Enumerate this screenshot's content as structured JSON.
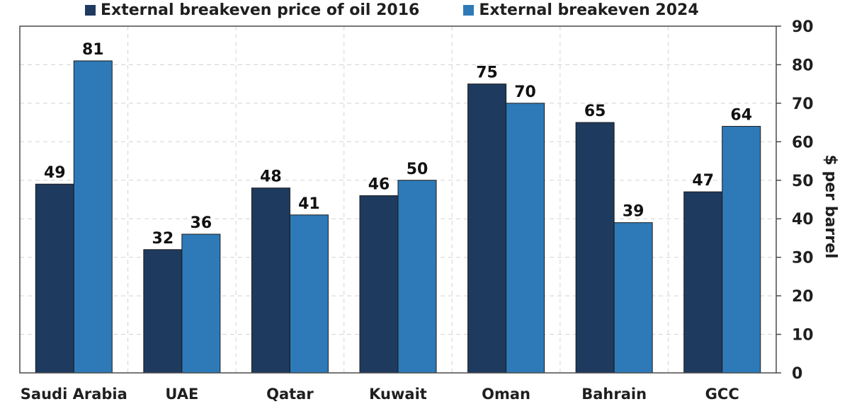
{
  "chart_data": {
    "type": "bar",
    "categories": [
      "Saudi Arabia",
      "UAE",
      "Qatar",
      "Kuwait",
      "Oman",
      "Bahrain",
      "GCC"
    ],
    "series": [
      {
        "name": "External breakeven price of oil 2016",
        "color": "#1f3a5f",
        "values": [
          49,
          32,
          48,
          46,
          75,
          65,
          47
        ],
        "labels": [
          "49",
          "32",
          "48",
          "46",
          "75",
          "65",
          "47"
        ]
      },
      {
        "name": "External breakeven 2024",
        "color": "#2e7ab8",
        "values": [
          81,
          36,
          41,
          50,
          70,
          39,
          64
        ],
        "labels": [
          "81",
          "36",
          "41",
          "50",
          "70",
          "39",
          "64"
        ]
      }
    ],
    "ylabel": "$ per barrel",
    "ylim": [
      0,
      90
    ],
    "yticks": [
      0,
      10,
      20,
      30,
      40,
      50,
      60,
      70,
      80,
      90
    ],
    "y_axis_side": "right",
    "grid": true,
    "legend_position": "top"
  }
}
